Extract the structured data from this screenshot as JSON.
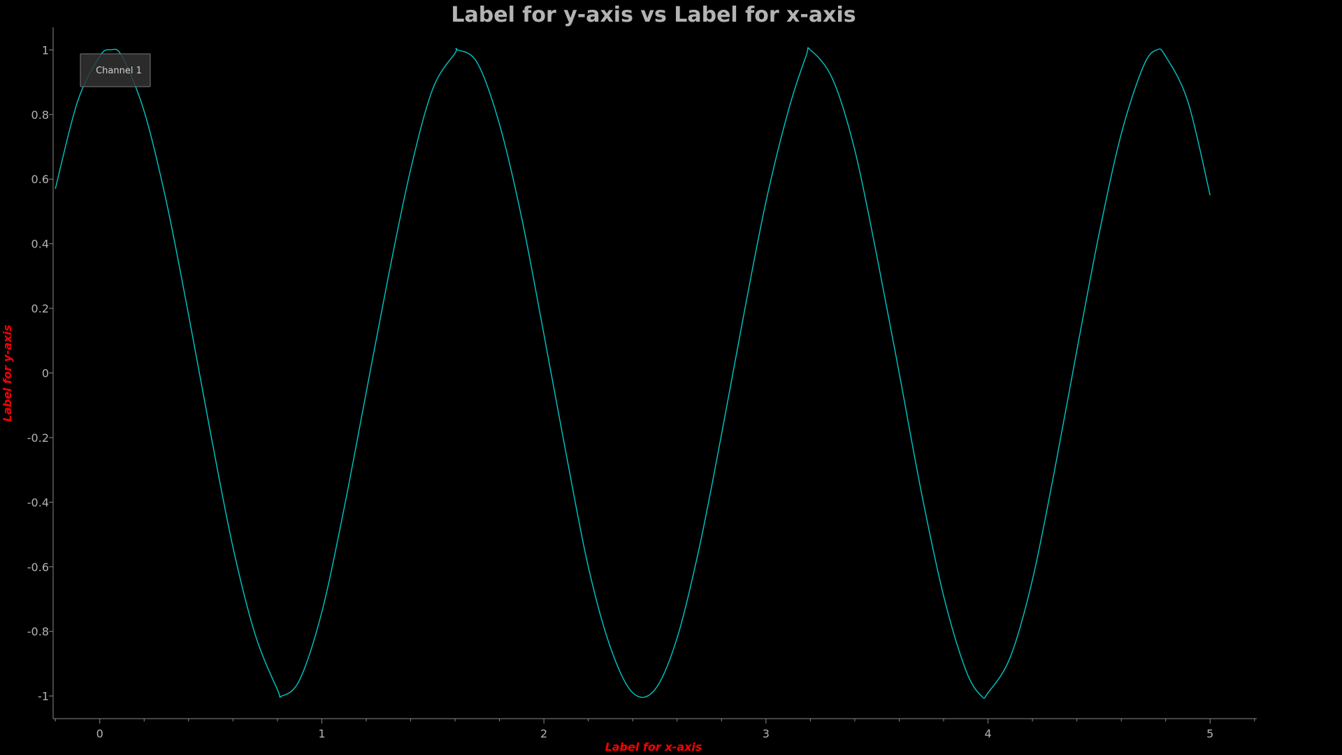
{
  "chart_data": {
    "type": "line",
    "title": "Label for y-axis vs Label for x-axis",
    "xlabel": "Label for x-axis",
    "ylabel": "Label for y-axis",
    "xlim": [
      -0.21,
      5.21
    ],
    "ylim": [
      -1.07,
      1.07
    ],
    "x_ticks": [
      0,
      1,
      2,
      3,
      4,
      5
    ],
    "y_ticks": [
      1,
      0.8,
      0.6,
      0.4,
      0.2,
      0,
      -0.2,
      -0.4,
      -0.6,
      -0.8,
      -1
    ],
    "x_tick_labels": [
      "0",
      "1",
      "2",
      "3",
      "4",
      "5"
    ],
    "y_tick_labels": [
      "1",
      "0.8",
      "0.6",
      "0.4",
      "0.2",
      "0",
      "-0.2",
      "-0.4",
      "-0.6",
      "-0.8",
      "-1"
    ],
    "grid": false,
    "legend_position": "top-left",
    "series": [
      {
        "name": "Channel 1",
        "color": "#00c8c8",
        "x": [
          -0.2,
          -0.1,
          0.0,
          0.05,
          0.1,
          0.2,
          0.3,
          0.4,
          0.5,
          0.6,
          0.7,
          0.8,
          0.82,
          0.9,
          1.0,
          1.1,
          1.2,
          1.3,
          1.4,
          1.5,
          1.6,
          1.61,
          1.7,
          1.8,
          1.9,
          2.0,
          2.1,
          2.2,
          2.3,
          2.4,
          2.5,
          2.6,
          2.7,
          2.8,
          2.9,
          3.0,
          3.1,
          3.18,
          3.2,
          3.3,
          3.4,
          3.5,
          3.6,
          3.7,
          3.8,
          3.9,
          3.97,
          4.0,
          4.1,
          4.2,
          4.3,
          4.4,
          4.5,
          4.6,
          4.7,
          4.76,
          4.8,
          4.9,
          5.0
        ],
        "y": [
          0.57,
          0.84,
          0.98,
          1.0,
          0.98,
          0.81,
          0.53,
          0.18,
          -0.19,
          -0.54,
          -0.81,
          -0.98,
          -1.0,
          -0.95,
          -0.74,
          -0.42,
          -0.06,
          0.3,
          0.63,
          0.88,
          0.99,
          1.0,
          0.96,
          0.77,
          0.48,
          0.12,
          -0.25,
          -0.6,
          -0.85,
          -0.99,
          -0.98,
          -0.82,
          -0.54,
          -0.19,
          0.18,
          0.53,
          0.81,
          0.98,
          1.0,
          0.91,
          0.69,
          0.36,
          0.0,
          -0.37,
          -0.69,
          -0.92,
          -1.0,
          -0.99,
          -0.88,
          -0.64,
          -0.3,
          0.07,
          0.43,
          0.74,
          0.95,
          1.0,
          0.98,
          0.84,
          0.55
        ]
      }
    ]
  },
  "colors": {
    "background": "#000000",
    "title": "#b3b3b3",
    "ticks": "#b3b3b3",
    "axis": "#8a8a8a",
    "axis_label": "#ff0000",
    "legend_bg": "#333333",
    "legend_border": "#7a7a7a",
    "legend_text": "#d0d0d0"
  }
}
